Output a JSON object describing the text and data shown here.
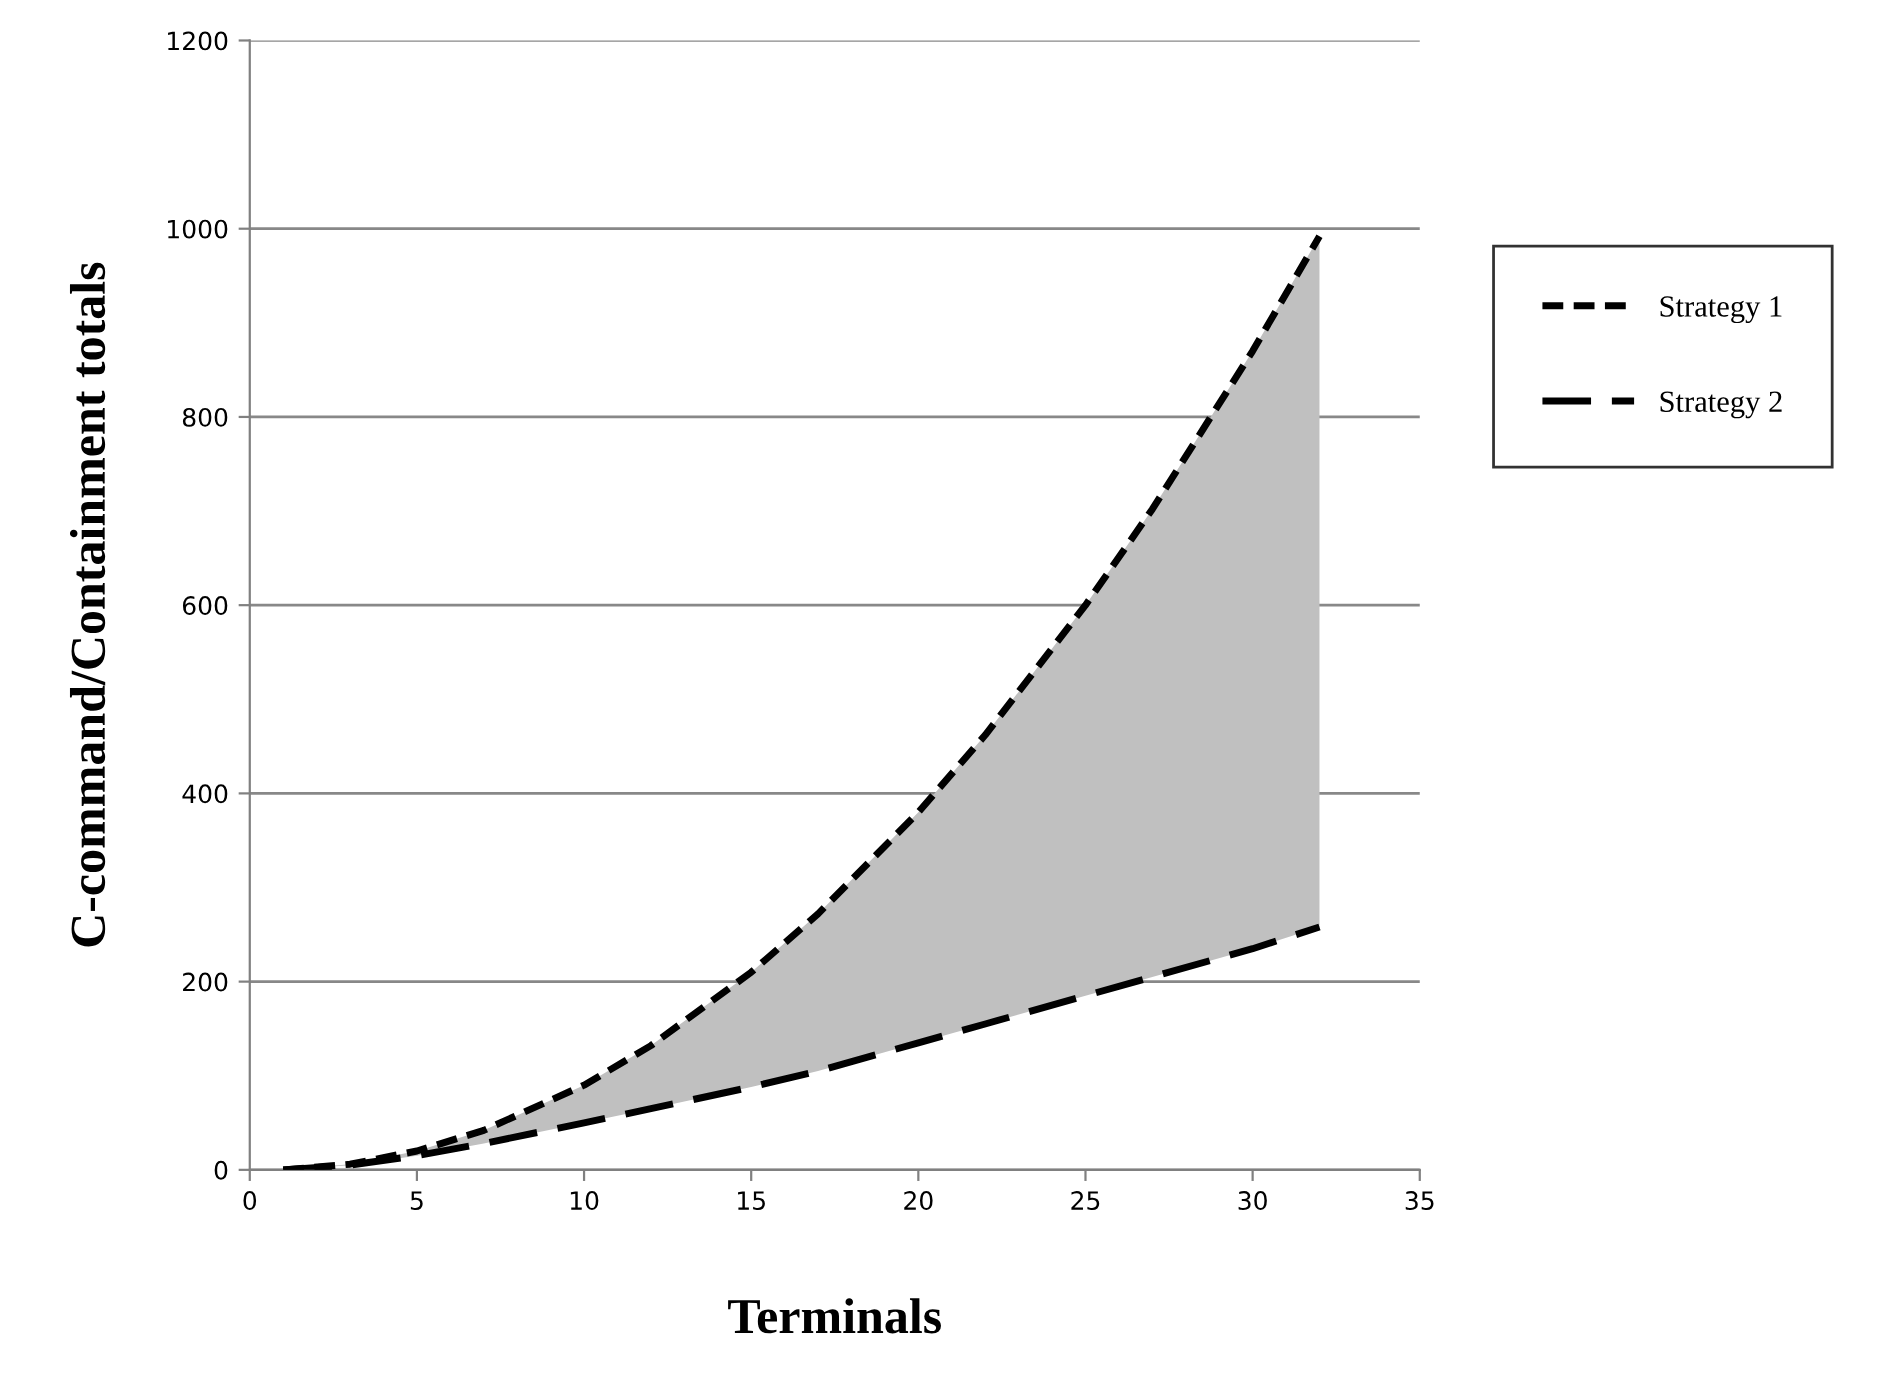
{
  "chart_data": {
    "type": "line",
    "xlabel": "Terminals",
    "ylabel": "C-command/Containment totals",
    "xlim": [
      0,
      35
    ],
    "xticks": [
      0,
      5,
      10,
      15,
      20,
      25,
      30,
      35
    ],
    "ylim": [
      0,
      1200
    ],
    "yticks": [
      0,
      200,
      400,
      600,
      800,
      1000,
      1200
    ],
    "grid": "y",
    "legend": "right",
    "line_style": "dashed",
    "marker": "none",
    "series": [
      {
        "name": "Strategy 1",
        "color": "#000000",
        "x": [
          1,
          3,
          5,
          7,
          10,
          12,
          15,
          17,
          20,
          22,
          25,
          27,
          30,
          32
        ],
        "values": [
          0,
          6,
          20,
          42,
          90,
          132,
          210,
          272,
          380,
          462,
          600,
          702,
          870,
          992
        ],
        "lower": [
          0,
          5,
          15,
          28,
          50,
          65,
          88,
          105,
          135,
          155,
          185,
          205,
          235,
          258
        ],
        "upper": [
          0,
          6,
          20,
          42,
          90,
          132,
          210,
          272,
          380,
          462,
          600,
          702,
          870,
          992
        ]
      },
      {
        "name": "Strategy 2",
        "color": "#000000",
        "x": [
          1,
          3,
          5,
          7,
          10,
          12,
          15,
          17,
          20,
          22,
          25,
          27,
          30,
          32
        ],
        "values": [
          0,
          5,
          15,
          28,
          50,
          65,
          88,
          105,
          135,
          155,
          185,
          205,
          235,
          258
        ]
      }
    ]
  }
}
